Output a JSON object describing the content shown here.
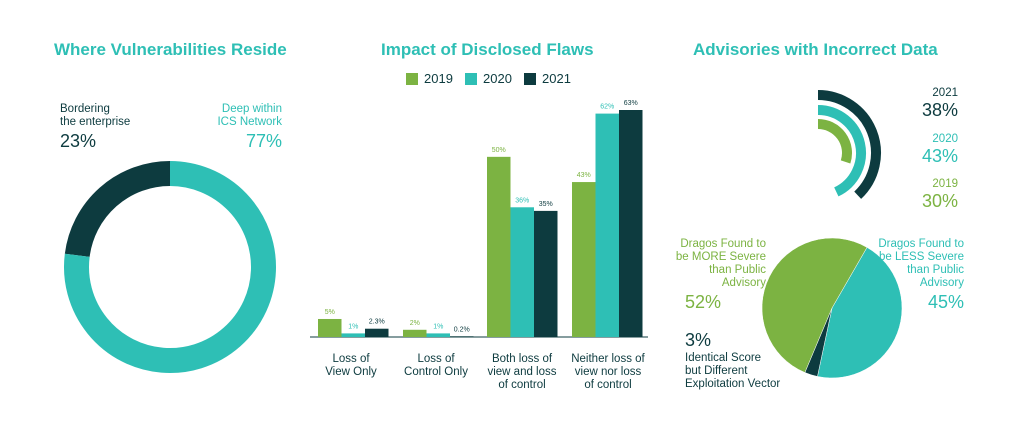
{
  "colors": {
    "c2019": "#7cb342",
    "c2020": "#2ebfb5",
    "c2021": "#0d3b3f"
  },
  "chart_data": [
    {
      "type": "pie",
      "title": "Where Vulnerabilities Reside",
      "slices": [
        {
          "label_lines": [
            "Bordering",
            "the enterprise"
          ],
          "value": 23,
          "display": "23%",
          "color": "#0d3b3f"
        },
        {
          "label_lines": [
            "Deep within",
            "ICS Network"
          ],
          "value": 77,
          "display": "77%",
          "color": "#2ebfb5"
        }
      ]
    },
    {
      "type": "bar",
      "title": "Impact of Disclosed Flaws",
      "legend": [
        "2019",
        "2020",
        "2021"
      ],
      "categories": [
        [
          "Loss of",
          "View Only"
        ],
        [
          "Loss of",
          "Control Only"
        ],
        [
          "Both loss of",
          "view and loss",
          "of control"
        ],
        [
          "Neither loss of",
          "view nor loss",
          "of control"
        ]
      ],
      "series": [
        {
          "name": "2019",
          "values": [
            5,
            2,
            50,
            43
          ],
          "labels": [
            "5%",
            "2%",
            "50%",
            "43%"
          ]
        },
        {
          "name": "2020",
          "values": [
            1,
            1,
            36,
            62
          ],
          "labels": [
            "1%",
            "1%",
            "36%",
            "62%"
          ]
        },
        {
          "name": "2021",
          "values": [
            2.3,
            0.2,
            35,
            63
          ],
          "labels": [
            "2.3%",
            "0.2%",
            "35%",
            "63%"
          ]
        }
      ],
      "ylim": [
        0,
        63
      ]
    },
    {
      "type": "radial-bar",
      "title": "Advisories with Incorrect Data",
      "series": [
        {
          "name": "2021",
          "value": 38,
          "display": "38%"
        },
        {
          "name": "2020",
          "value": 43,
          "display": "43%"
        },
        {
          "name": "2019",
          "value": 30,
          "display": "30%"
        }
      ]
    },
    {
      "type": "pie",
      "slices": [
        {
          "label_lines": [
            "Dragos Found to",
            "be MORE Severe",
            "than Public",
            "Advisory"
          ],
          "value": 52,
          "display": "52%",
          "color": "#7cb342"
        },
        {
          "label_lines": [
            "Dragos Found to",
            "be LESS Severe",
            "than Public",
            "Advisory"
          ],
          "value": 45,
          "display": "45%",
          "color": "#2ebfb5"
        },
        {
          "label_lines": [
            "Identical Score",
            "but Different",
            "Exploitation Vector"
          ],
          "value": 3,
          "display": "3%",
          "color": "#0d3b3f"
        }
      ]
    }
  ]
}
